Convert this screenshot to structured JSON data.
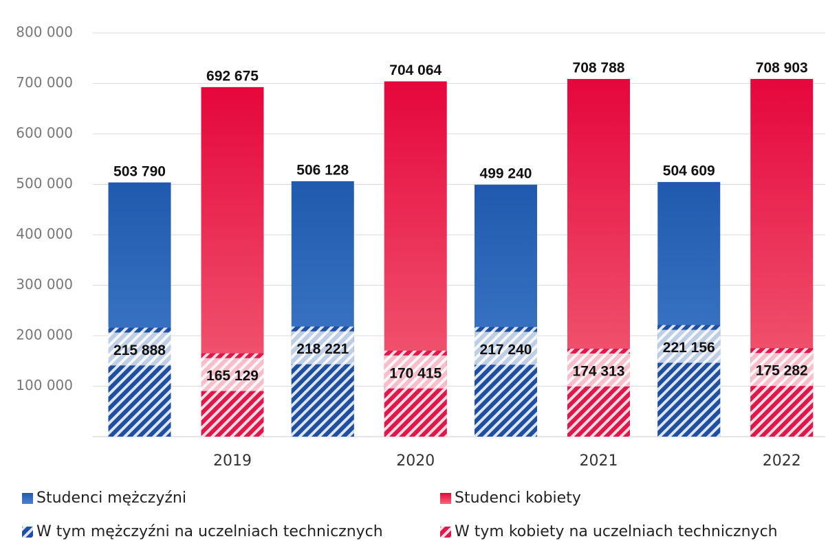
{
  "chart_data": {
    "type": "bar",
    "categories": [
      "2019",
      "2020",
      "2021",
      "2022"
    ],
    "series": [
      {
        "name": "Studenci mężczyźni",
        "color": "#2a64b8",
        "values": [
          503790,
          506128,
          499240,
          504609
        ],
        "value_labels": [
          "503 790",
          "506 128",
          "499 240",
          "504 609"
        ]
      },
      {
        "name": "Studenci kobiety",
        "color": "#e8173f",
        "values": [
          692675,
          704064,
          708788,
          708903
        ],
        "value_labels": [
          "692 675",
          "704 064",
          "708 788",
          "708 903"
        ]
      },
      {
        "name": "W tym mężczyźni na uczelniach technicznych",
        "color": "#1f4f9e",
        "values": [
          215888,
          218221,
          217240,
          221156
        ],
        "value_labels": [
          "215 888",
          "218 221",
          "217 240",
          "221 156"
        ]
      },
      {
        "name": "W tym kobiety na uczelniach technicznych",
        "color": "#e0174a",
        "values": [
          165129,
          170415,
          174313,
          175282
        ],
        "value_labels": [
          "165 129",
          "170 415",
          "174 313",
          "175 282"
        ]
      }
    ],
    "ylim": [
      0,
      800000
    ],
    "yticks": [
      {
        "value": 100000,
        "label": "100 000"
      },
      {
        "value": 200000,
        "label": "200 000"
      },
      {
        "value": 300000,
        "label": "300 000"
      },
      {
        "value": 400000,
        "label": "400 000"
      },
      {
        "value": 500000,
        "label": "500 000"
      },
      {
        "value": 600000,
        "label": "600 000"
      },
      {
        "value": 700000,
        "label": "700 000"
      },
      {
        "value": 800000,
        "label": "800 000"
      }
    ],
    "grid": true
  }
}
